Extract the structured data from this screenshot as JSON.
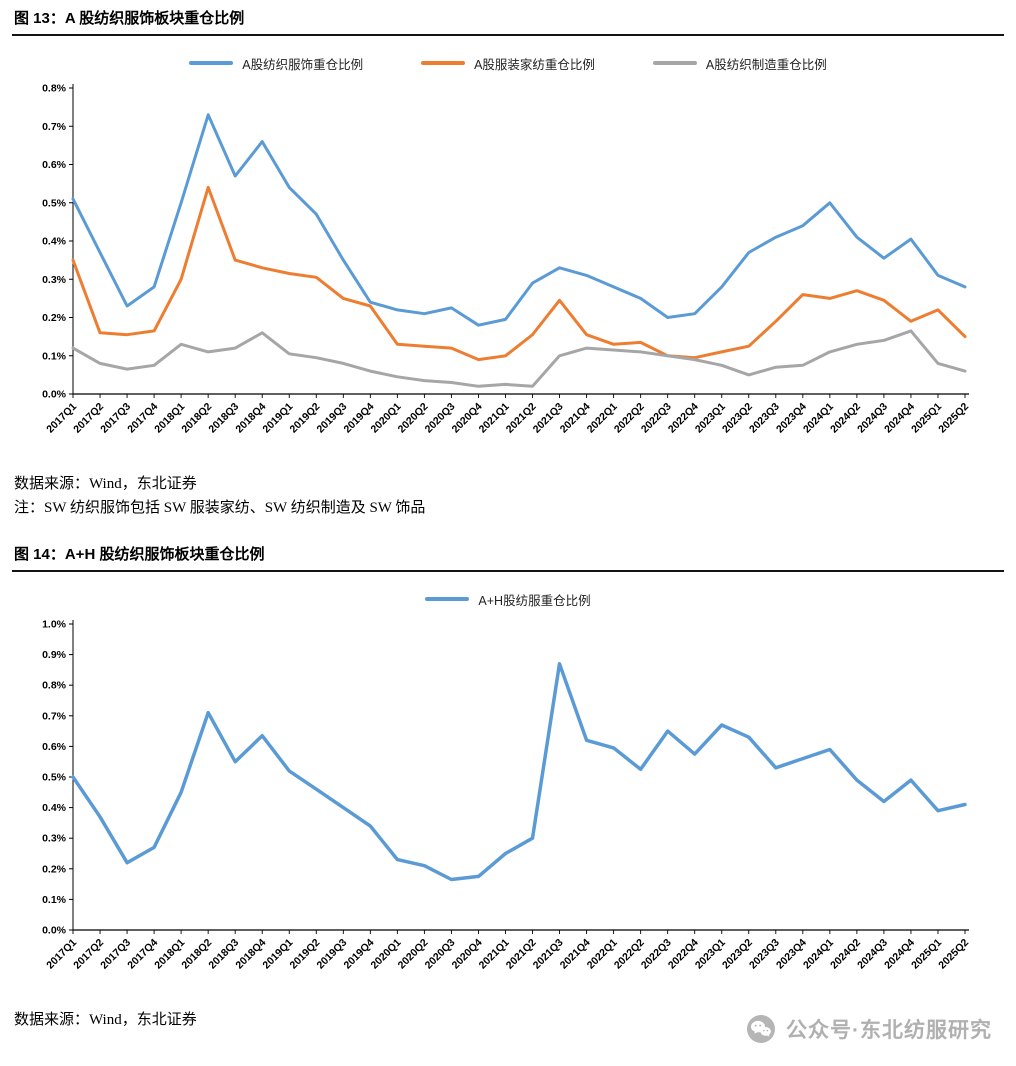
{
  "page": {
    "background": "#ffffff"
  },
  "figure13": {
    "title": "图 13：A 股纺织服饰板块重仓比例",
    "source": "数据来源：Wind，东北证券",
    "note": "注：SW 纺织服饰包括 SW 服装家纺、SW 纺织制造及 SW 饰品"
  },
  "figure14": {
    "title": "图 14：A+H 股纺织服饰板块重仓比例",
    "source": "数据来源：Wind，东北证券"
  },
  "watermark": {
    "icon": "wechat-icon",
    "text": "公众号·东北纺服研究",
    "color": "#a8a8a8"
  },
  "chart_data": [
    {
      "id": "chart13",
      "type": "line",
      "title": "A股纺织服饰板块重仓比例",
      "legend_position": "top",
      "grid": false,
      "ylim": [
        0,
        0.8
      ],
      "ytick_step": 0.1,
      "ytick_suffix": "%",
      "line_width": 3,
      "units": "percent",
      "categories": [
        "2017Q1",
        "2017Q2",
        "2017Q3",
        "2017Q4",
        "2018Q1",
        "2018Q2",
        "2018Q3",
        "2018Q4",
        "2019Q1",
        "2019Q2",
        "2019Q3",
        "2019Q4",
        "2020Q1",
        "2020Q2",
        "2020Q3",
        "2020Q4",
        "2021Q1",
        "2021Q2",
        "2021Q3",
        "2021Q4",
        "2022Q1",
        "2022Q2",
        "2022Q3",
        "2022Q4",
        "2023Q1",
        "2023Q2",
        "2023Q3",
        "2023Q4",
        "2024Q1",
        "2024Q2",
        "2024Q3",
        "2024Q4",
        "2025Q1",
        "2025Q2"
      ],
      "series": [
        {
          "name": "A股纺织服饰重仓比例",
          "color": "#5B9BD5",
          "values": [
            0.51,
            0.37,
            0.23,
            0.28,
            0.5,
            0.73,
            0.57,
            0.66,
            0.54,
            0.47,
            0.35,
            0.24,
            0.22,
            0.21,
            0.225,
            0.18,
            0.195,
            0.29,
            0.33,
            0.31,
            0.28,
            0.25,
            0.2,
            0.21,
            0.28,
            0.37,
            0.41,
            0.44,
            0.5,
            0.41,
            0.355,
            0.405,
            0.31,
            0.28
          ]
        },
        {
          "name": "A股服装家纺重仓比例",
          "color": "#ED7D31",
          "values": [
            0.35,
            0.16,
            0.155,
            0.165,
            0.3,
            0.54,
            0.35,
            0.33,
            0.315,
            0.305,
            0.25,
            0.23,
            0.13,
            0.125,
            0.12,
            0.09,
            0.1,
            0.155,
            0.245,
            0.155,
            0.13,
            0.135,
            0.1,
            0.095,
            0.11,
            0.125,
            0.19,
            0.26,
            0.25,
            0.27,
            0.245,
            0.19,
            0.22,
            0.15
          ]
        },
        {
          "name": "A股纺织制造重仓比例",
          "color": "#A6A6A6",
          "values": [
            0.12,
            0.08,
            0.065,
            0.075,
            0.13,
            0.11,
            0.12,
            0.16,
            0.105,
            0.095,
            0.08,
            0.06,
            0.045,
            0.035,
            0.03,
            0.02,
            0.025,
            0.02,
            0.1,
            0.12,
            0.115,
            0.11,
            0.1,
            0.09,
            0.075,
            0.05,
            0.07,
            0.075,
            0.11,
            0.13,
            0.14,
            0.165,
            0.08,
            0.06
          ]
        }
      ]
    },
    {
      "id": "chart14",
      "type": "line",
      "title": "A+H股纺织服饰板块重仓比例",
      "legend_position": "top",
      "grid": false,
      "ylim": [
        0,
        1.0
      ],
      "ytick_step": 0.1,
      "ytick_suffix": "%",
      "line_width": 3.5,
      "units": "percent",
      "categories": [
        "2017Q1",
        "2017Q2",
        "2017Q3",
        "2017Q4",
        "2018Q1",
        "2018Q2",
        "2018Q3",
        "2018Q4",
        "2019Q1",
        "2019Q2",
        "2019Q3",
        "2019Q4",
        "2020Q1",
        "2020Q2",
        "2020Q3",
        "2020Q4",
        "2021Q1",
        "2021Q2",
        "2021Q3",
        "2021Q4",
        "2022Q1",
        "2022Q2",
        "2022Q3",
        "2022Q4",
        "2023Q1",
        "2023Q2",
        "2023Q3",
        "2023Q4",
        "2024Q1",
        "2024Q2",
        "2024Q3",
        "2024Q4",
        "2025Q1",
        "2025Q2"
      ],
      "series": [
        {
          "name": "A+H股纺服重仓比例",
          "color": "#5B9BD5",
          "values": [
            0.5,
            0.37,
            0.22,
            0.27,
            0.45,
            0.71,
            0.55,
            0.635,
            0.52,
            0.46,
            0.4,
            0.34,
            0.23,
            0.21,
            0.165,
            0.175,
            0.25,
            0.3,
            0.87,
            0.62,
            0.595,
            0.525,
            0.65,
            0.575,
            0.67,
            0.63,
            0.53,
            0.56,
            0.59,
            0.49,
            0.42,
            0.49,
            0.39,
            0.41
          ]
        }
      ]
    }
  ]
}
